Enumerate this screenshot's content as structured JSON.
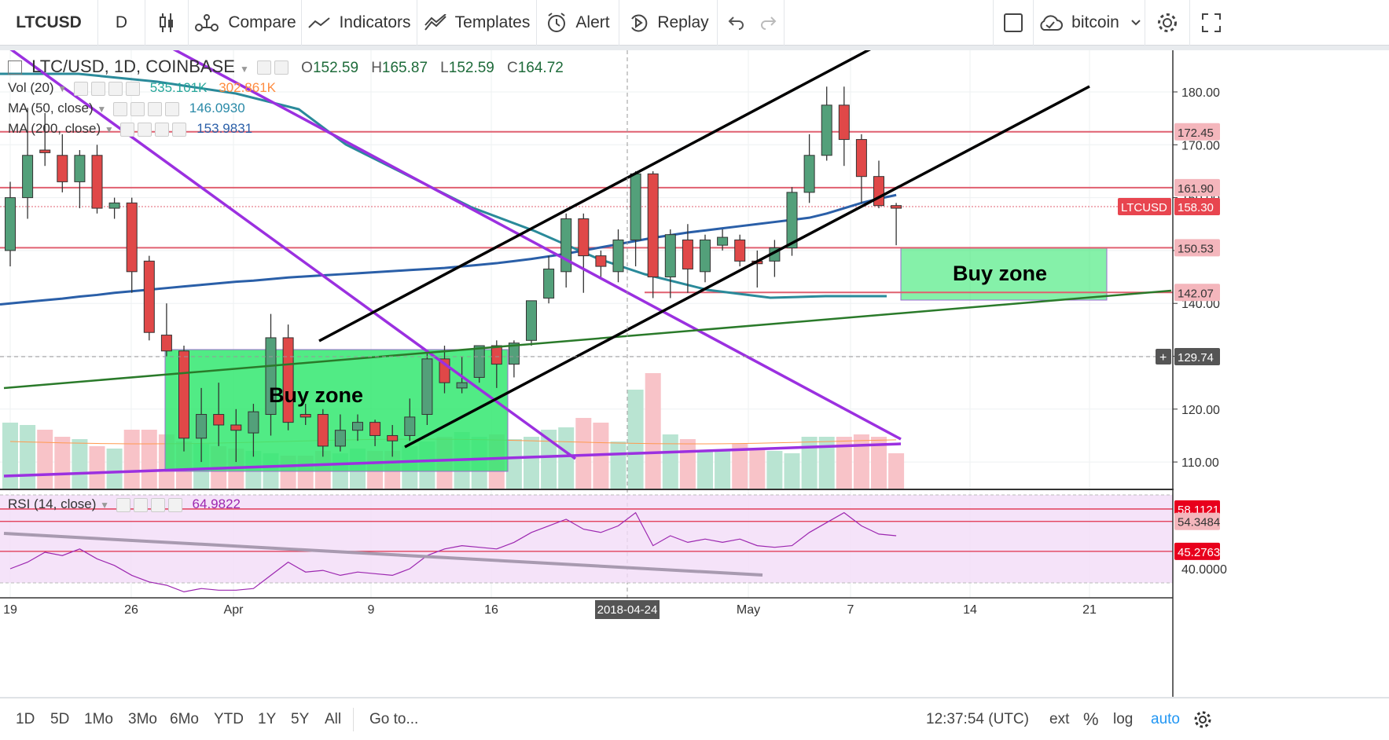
{
  "toolbar": {
    "symbol": "LTCUSD",
    "interval": "D",
    "compare": "Compare",
    "indicators": "Indicators",
    "templates": "Templates",
    "alert": "Alert",
    "replay": "Replay",
    "layout_name": "bitcoin"
  },
  "legend": {
    "title": "LTC/USD, 1D, COINBASE",
    "open_label": "O",
    "open": "152.59",
    "high_label": "H",
    "high": "165.87",
    "low_label": "L",
    "low": "152.59",
    "close_label": "C",
    "close": "164.72",
    "vol_label": "Vol (20)",
    "vol_value": "535.101K",
    "vol_ma": "302.861K",
    "ma50_label": "MA (50, close)",
    "ma50_value": "146.0930",
    "ma200_label": "MA (200, close)",
    "ma200_value": "153.9831",
    "rsi_label": "RSI (14, close)",
    "rsi_value": "64.9822"
  },
  "annotations": {
    "buy_zone_1": "Buy zone",
    "buy_zone_2": "Buy zone"
  },
  "price_labels": {
    "l172": "172.45",
    "l161": "161.90",
    "l158_sym": "LTCUSD",
    "l158": "158.30",
    "l150": "150.53",
    "l142": "142.07",
    "cross": "129.74",
    "rsi1": "58.1121",
    "rsi2": "54.3484",
    "rsi3": "45.2763"
  },
  "crosshair_date": "2018-04-24",
  "bottom": {
    "ranges": [
      "1D",
      "5D",
      "1Mo",
      "3Mo",
      "6Mo",
      "YTD",
      "1Y",
      "5Y",
      "All"
    ],
    "goto": "Go to...",
    "clock": "12:37:54 (UTC)",
    "ext": "ext",
    "percent": "%",
    "log": "log",
    "auto": "auto"
  },
  "colors": {
    "up": "#53a07a",
    "down": "#e04848",
    "ma50": "#2a5fa8",
    "ma_teal": "#2a8a9a",
    "trend_purple": "#9b30e0",
    "trend_green": "#2a7a2a",
    "buyzone": "#33e870",
    "hline": "#e06070",
    "rsi": "#9c27b0"
  },
  "chart_data": {
    "type": "candlestick",
    "symbol": "LTC/USD",
    "exchange": "COINBASE",
    "interval": "1D",
    "y_range": [
      105,
      190
    ],
    "y_ticks": [
      110,
      120,
      130,
      140,
      150,
      160,
      170,
      180
    ],
    "x_tick_labels": [
      "19",
      "26",
      "Apr",
      "9",
      "16",
      "May",
      "7",
      "14",
      "21"
    ],
    "candles": [
      {
        "o": 150,
        "h": 163,
        "l": 147,
        "c": 160
      },
      {
        "o": 160,
        "h": 177,
        "l": 156,
        "c": 168
      },
      {
        "o": 169,
        "h": 176,
        "l": 166,
        "c": 168.5
      },
      {
        "o": 168,
        "h": 172,
        "l": 161,
        "c": 163
      },
      {
        "o": 163,
        "h": 169,
        "l": 158,
        "c": 168
      },
      {
        "o": 168,
        "h": 170,
        "l": 157,
        "c": 158
      },
      {
        "o": 158,
        "h": 160,
        "l": 156,
        "c": 159
      },
      {
        "o": 159,
        "h": 160,
        "l": 142,
        "c": 146
      },
      {
        "o": 148,
        "h": 149,
        "l": 133,
        "c": 134.5
      },
      {
        "o": 134,
        "h": 140,
        "l": 130,
        "c": 131
      },
      {
        "o": 131,
        "h": 132,
        "l": 112,
        "c": 114.5
      },
      {
        "o": 114.5,
        "h": 124,
        "l": 110,
        "c": 119
      },
      {
        "o": 119,
        "h": 125,
        "l": 113,
        "c": 117
      },
      {
        "o": 117,
        "h": 120,
        "l": 110,
        "c": 116
      },
      {
        "o": 115.5,
        "h": 121,
        "l": 111,
        "c": 119.5
      },
      {
        "o": 119,
        "h": 138,
        "l": 115,
        "c": 133.5
      },
      {
        "o": 133.5,
        "h": 136,
        "l": 116,
        "c": 117.5
      },
      {
        "o": 119,
        "h": 121,
        "l": 117,
        "c": 118.5
      },
      {
        "o": 119,
        "h": 120,
        "l": 111,
        "c": 113
      },
      {
        "o": 113,
        "h": 119,
        "l": 112,
        "c": 116
      },
      {
        "o": 116,
        "h": 119,
        "l": 114,
        "c": 117.5
      },
      {
        "o": 117.5,
        "h": 118,
        "l": 113,
        "c": 115
      },
      {
        "o": 115,
        "h": 117,
        "l": 111,
        "c": 114
      },
      {
        "o": 115,
        "h": 122,
        "l": 114,
        "c": 118.5
      },
      {
        "o": 119,
        "h": 131,
        "l": 117,
        "c": 129.5
      },
      {
        "o": 129.5,
        "h": 132,
        "l": 123,
        "c": 125
      },
      {
        "o": 124,
        "h": 130,
        "l": 123,
        "c": 125
      },
      {
        "o": 126,
        "h": 132,
        "l": 125,
        "c": 132
      },
      {
        "o": 132,
        "h": 133,
        "l": 124,
        "c": 128.5
      },
      {
        "o": 128.5,
        "h": 133,
        "l": 126,
        "c": 132.5
      },
      {
        "o": 133,
        "h": 140,
        "l": 132,
        "c": 140.5
      },
      {
        "o": 141,
        "h": 149,
        "l": 140,
        "c": 146.5
      },
      {
        "o": 146,
        "h": 157,
        "l": 143,
        "c": 156
      },
      {
        "o": 156,
        "h": 157,
        "l": 142,
        "c": 149
      },
      {
        "o": 149,
        "h": 150,
        "l": 145,
        "c": 147
      },
      {
        "o": 146,
        "h": 154,
        "l": 144,
        "c": 152
      },
      {
        "o": 152,
        "h": 165,
        "l": 147,
        "c": 164.5
      },
      {
        "o": 164.5,
        "h": 165,
        "l": 141,
        "c": 145
      },
      {
        "o": 145,
        "h": 154,
        "l": 141,
        "c": 153
      },
      {
        "o": 152,
        "h": 155,
        "l": 142,
        "c": 146.5
      },
      {
        "o": 146,
        "h": 153,
        "l": 144,
        "c": 152
      },
      {
        "o": 151,
        "h": 154,
        "l": 150,
        "c": 152.5
      },
      {
        "o": 152,
        "h": 153,
        "l": 147,
        "c": 148
      },
      {
        "o": 148,
        "h": 150,
        "l": 143,
        "c": 147.5
      },
      {
        "o": 148,
        "h": 152,
        "l": 145,
        "c": 150.5
      },
      {
        "o": 150.5,
        "h": 162,
        "l": 149,
        "c": 161
      },
      {
        "o": 161,
        "h": 172,
        "l": 159,
        "c": 168
      },
      {
        "o": 168,
        "h": 181,
        "l": 167,
        "c": 177.5
      },
      {
        "o": 177.5,
        "h": 181,
        "l": 166,
        "c": 171
      },
      {
        "o": 171,
        "h": 172,
        "l": 159,
        "c": 164
      },
      {
        "o": 164,
        "h": 167,
        "l": 158,
        "c": 158.5
      },
      {
        "o": 158.5,
        "h": 159,
        "l": 151,
        "c": 158
      }
    ],
    "volume": [
      28,
      27,
      25,
      22,
      21,
      18,
      17,
      25,
      25,
      23,
      20,
      19,
      18,
      17,
      16,
      15,
      14,
      14,
      16,
      15,
      17,
      16,
      16,
      18,
      20,
      22,
      24,
      22,
      23,
      21,
      22,
      25,
      26,
      30,
      28,
      20,
      42,
      49,
      23,
      21,
      16,
      16,
      19,
      17,
      16,
      15,
      22,
      22,
      22,
      23,
      22,
      15
    ],
    "horizontal_levels": [
      172.45,
      161.9,
      158.3,
      150.53,
      142.07
    ],
    "ma50": [
      140.0,
      140.3,
      140.6,
      140.9,
      141.3,
      141.6,
      142.0,
      142.3,
      142.6,
      142.9,
      143.2,
      143.5,
      143.8,
      144.1,
      144.3,
      144.6,
      144.9,
      145.1,
      145.3,
      145.5,
      145.7,
      145.9,
      146.1,
      146.3,
      146.5,
      146.7,
      147.0,
      147.3,
      147.6,
      148.0,
      148.4,
      148.9,
      149.4,
      150.0,
      150.6,
      151.2,
      151.8,
      152.4,
      152.9,
      153.4,
      153.8,
      154.2,
      154.6,
      155.0,
      155.4,
      155.8,
      156.2,
      157.0,
      158.0,
      159.0,
      159.8,
      160.5
    ],
    "rsi": {
      "levels": [
        58.1121,
        54.3484,
        45.2763
      ],
      "value": 64.9822,
      "y_ticks": [
        40
      ]
    }
  }
}
